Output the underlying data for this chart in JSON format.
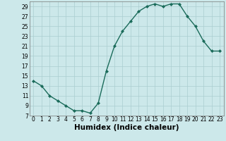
{
  "x": [
    0,
    1,
    2,
    3,
    4,
    5,
    6,
    7,
    8,
    9,
    10,
    11,
    12,
    13,
    14,
    15,
    16,
    17,
    18,
    19,
    20,
    21,
    22,
    23
  ],
  "y": [
    14,
    13,
    11,
    10,
    9,
    8,
    8,
    7.5,
    9.5,
    16,
    21,
    24,
    26,
    28,
    29,
    29.5,
    29,
    29.5,
    29.5,
    27,
    25,
    22,
    20,
    20
  ],
  "line_color": "#1a6b5a",
  "marker": "D",
  "marker_size": 2.0,
  "bg_color": "#cce8ea",
  "grid_color": "#aacdd0",
  "xlabel": "Humidex (Indice chaleur)",
  "xlim": [
    -0.5,
    23.5
  ],
  "ylim": [
    7,
    30
  ],
  "yticks": [
    7,
    9,
    11,
    13,
    15,
    17,
    19,
    21,
    23,
    25,
    27,
    29
  ],
  "xtick_labels": [
    "0",
    "1",
    "2",
    "3",
    "4",
    "5",
    "6",
    "7",
    "8",
    "9",
    "10",
    "11",
    "12",
    "13",
    "14",
    "15",
    "16",
    "17",
    "18",
    "19",
    "20",
    "21",
    "22",
    "23"
  ],
  "line_width": 1.0,
  "tick_fontsize": 5.5,
  "xlabel_fontsize": 7.5
}
